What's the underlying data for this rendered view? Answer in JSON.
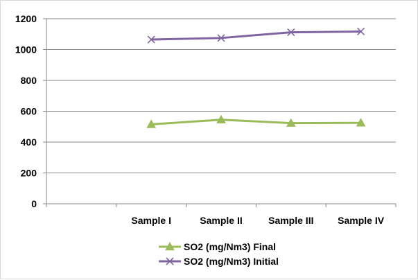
{
  "chart_data": {
    "type": "line",
    "categories": [
      "",
      "Sample I",
      "Sample II",
      "Sample III",
      "Sample IV"
    ],
    "ylim": [
      0,
      1200
    ],
    "yticks": [
      0,
      200,
      400,
      600,
      800,
      1000,
      1200
    ],
    "grid": true,
    "legend_position": "bottom",
    "series": [
      {
        "name": "SO2  (mg/Nm3) Final",
        "values": [
          null,
          515,
          545,
          523,
          525
        ],
        "color": "#9bbb59",
        "marker": "triangle"
      },
      {
        "name": "SO2  (mg/Nm3) Initial",
        "values": [
          null,
          1065,
          1075,
          1112,
          1117
        ],
        "color": "#8064a2",
        "marker": "x"
      }
    ]
  }
}
